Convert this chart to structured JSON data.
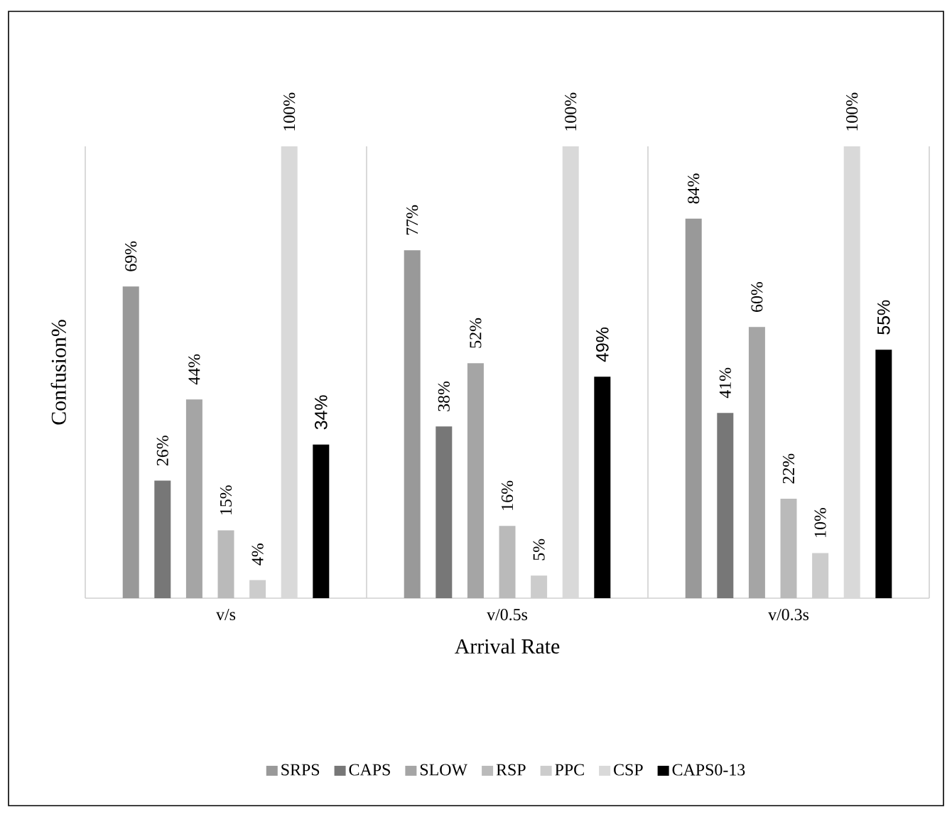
{
  "chart_data": {
    "type": "bar",
    "xlabel": "Arrival Rate",
    "ylabel": "Confusion%",
    "categories": [
      "v/s",
      "v/0.5s",
      "v/0.3s"
    ],
    "grid": "x",
    "legend": "bottom",
    "series": [
      {
        "name": "SRPS",
        "color": "#999999",
        "values": [
          69,
          77,
          84
        ],
        "value_labels": [
          "69%",
          "77%",
          "84%"
        ]
      },
      {
        "name": "CAPS",
        "color": "#777777",
        "values": [
          26,
          38,
          41
        ],
        "value_labels": [
          "26%",
          "38%",
          "41%"
        ]
      },
      {
        "name": "SLOW",
        "color": "#a5a5a5",
        "values": [
          44,
          52,
          60
        ],
        "value_labels": [
          "44%",
          "52%",
          "60%"
        ]
      },
      {
        "name": "RSP",
        "color": "#bababa",
        "values": [
          15,
          16,
          22
        ],
        "value_labels": [
          "15%",
          "16%",
          "22%"
        ]
      },
      {
        "name": "PPC",
        "color": "#cccccc",
        "values": [
          4,
          5,
          10
        ],
        "value_labels": [
          "4%",
          "5%",
          "10%"
        ]
      },
      {
        "name": "CSP",
        "color": "#d9d9d9",
        "values": [
          100,
          100,
          100
        ],
        "value_labels": [
          "100%",
          "100%",
          "100%"
        ]
      },
      {
        "name": "CAPS0-13",
        "color": "#000000",
        "values": [
          34,
          49,
          55
        ],
        "value_labels": [
          "34%",
          "49%",
          "55%"
        ]
      }
    ]
  }
}
